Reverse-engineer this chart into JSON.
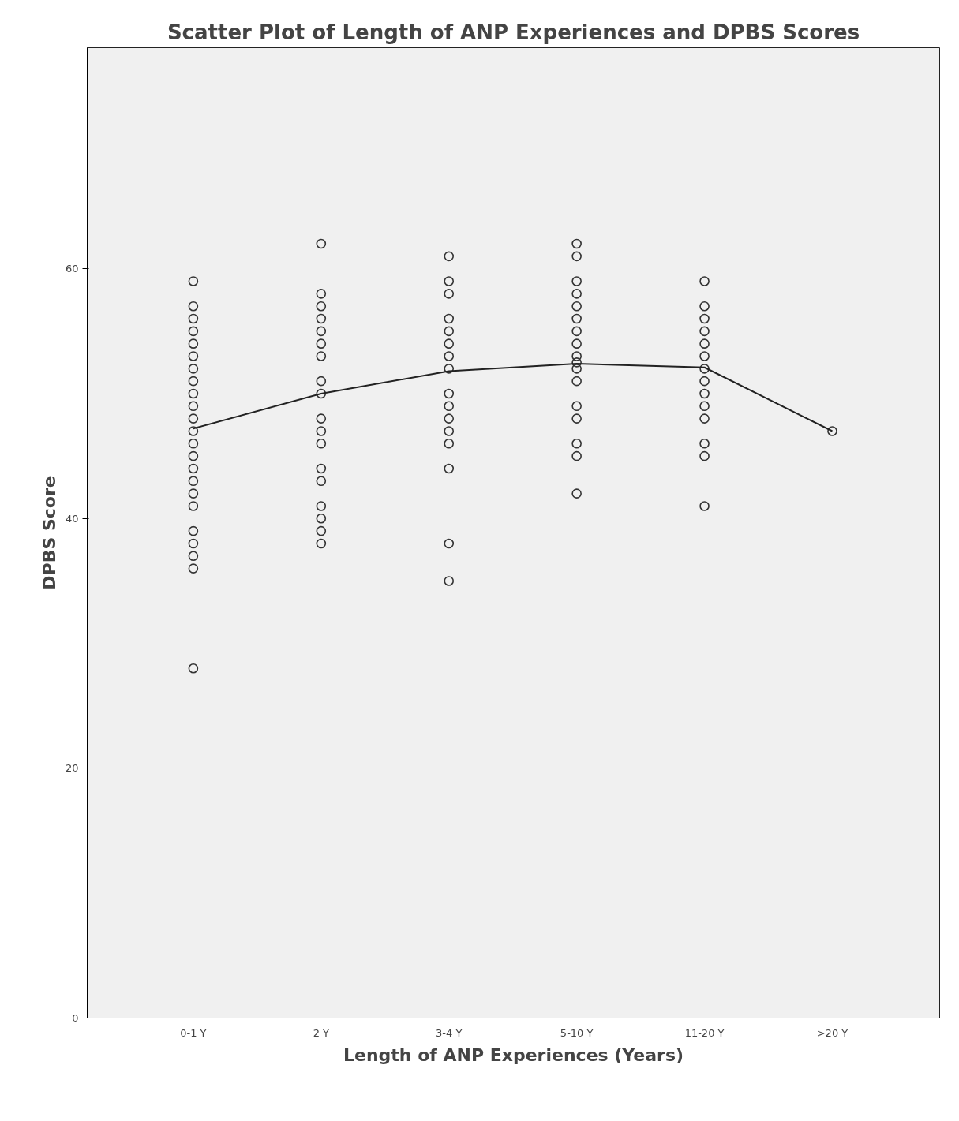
{
  "chart_data": {
    "type": "scatter",
    "title": "Scatter Plot of Length of ANP Experiences and DPBS Scores",
    "xlabel": "Length of ANP Experiences (Years)",
    "ylabel": "DPBS Score",
    "categories": [
      "0-1 Y",
      "2 Y",
      "3-4 Y",
      "5-10 Y",
      "11-20 Y",
      ">20 Y"
    ],
    "ylim": [
      0,
      77.7
    ],
    "yticks": [
      0,
      20,
      40,
      60
    ],
    "grid": false,
    "series": [
      {
        "marker": "circle",
        "color": "#333333",
        "x": [
          "0-1 Y",
          "0-1 Y",
          "0-1 Y",
          "0-1 Y",
          "0-1 Y",
          "0-1 Y",
          "0-1 Y",
          "0-1 Y",
          "0-1 Y",
          "0-1 Y",
          "0-1 Y",
          "0-1 Y",
          "0-1 Y",
          "0-1 Y",
          "0-1 Y",
          "0-1 Y",
          "0-1 Y",
          "0-1 Y",
          "0-1 Y",
          "0-1 Y",
          "0-1 Y",
          "0-1 Y",
          "0-1 Y",
          "2 Y",
          "2 Y",
          "2 Y",
          "2 Y",
          "2 Y",
          "2 Y",
          "2 Y",
          "2 Y",
          "2 Y",
          "2 Y",
          "2 Y",
          "2 Y",
          "2 Y",
          "2 Y",
          "2 Y",
          "2 Y",
          "2 Y",
          "2 Y",
          "3-4 Y",
          "3-4 Y",
          "3-4 Y",
          "3-4 Y",
          "3-4 Y",
          "3-4 Y",
          "3-4 Y",
          "3-4 Y",
          "3-4 Y",
          "3-4 Y",
          "3-4 Y",
          "3-4 Y",
          "3-4 Y",
          "3-4 Y",
          "3-4 Y",
          "3-4 Y",
          "5-10 Y",
          "5-10 Y",
          "5-10 Y",
          "5-10 Y",
          "5-10 Y",
          "5-10 Y",
          "5-10 Y",
          "5-10 Y",
          "5-10 Y",
          "5-10 Y",
          "5-10 Y",
          "5-10 Y",
          "5-10 Y",
          "5-10 Y",
          "5-10 Y",
          "5-10 Y",
          "5-10 Y",
          "11-20 Y",
          "11-20 Y",
          "11-20 Y",
          "11-20 Y",
          "11-20 Y",
          "11-20 Y",
          "11-20 Y",
          "11-20 Y",
          "11-20 Y",
          "11-20 Y",
          "11-20 Y",
          "11-20 Y",
          "11-20 Y",
          "11-20 Y",
          ">20 Y"
        ],
        "values": [
          59,
          57,
          56,
          55,
          54,
          53,
          52,
          51,
          50,
          49,
          48,
          47,
          46,
          45,
          44,
          43,
          42,
          41,
          39,
          38,
          37,
          36,
          28,
          62,
          58,
          57,
          56,
          55,
          54,
          53,
          51,
          50,
          48,
          47,
          46,
          44,
          43,
          41,
          40,
          39,
          38,
          61,
          59,
          58,
          56,
          55,
          54,
          53,
          52,
          50,
          49,
          48,
          47,
          46,
          44,
          38,
          35,
          62,
          61,
          59,
          58,
          57,
          56,
          55,
          54,
          53,
          52.5,
          52,
          51,
          49,
          48,
          46,
          45,
          42,
          59,
          57,
          56,
          55,
          54,
          53,
          52,
          51,
          50,
          49,
          48,
          46,
          45,
          41,
          47
        ]
      },
      {
        "type": "line",
        "color": "#222222",
        "values": [
          47.2,
          50.0,
          51.8,
          52.4,
          52.1,
          47.0
        ]
      }
    ]
  }
}
